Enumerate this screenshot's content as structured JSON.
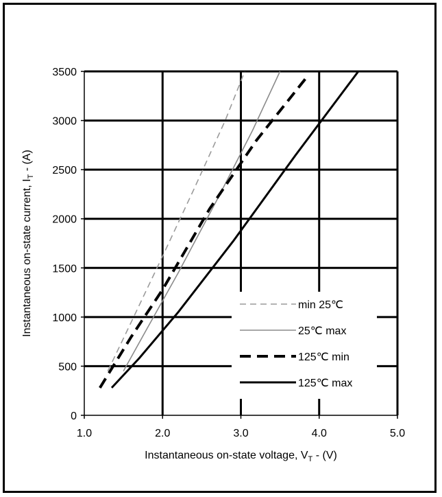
{
  "chart_data": {
    "type": "line",
    "xlabel": {
      "text": "Instantaneous on-state voltage, V",
      "sub": "T",
      "suffix": " - (V)"
    },
    "ylabel": {
      "text": "Instantaneous on-state current, I",
      "sub": "T",
      "suffix": " - (A)"
    },
    "xlim": [
      1.0,
      5.0
    ],
    "ylim": [
      0,
      3500
    ],
    "xticks": [
      1.0,
      2.0,
      3.0,
      4.0,
      5.0
    ],
    "xtick_labels": [
      "1.0",
      "2.0",
      "3.0",
      "4.0",
      "5.0"
    ],
    "yticks": [
      0,
      500,
      1000,
      1500,
      2000,
      2500,
      3000,
      3500
    ],
    "ytick_labels": [
      "0",
      "500",
      "1000",
      "1500",
      "2000",
      "2500",
      "3000",
      "3500"
    ],
    "grid": true,
    "legend_position": "bottom-right",
    "series": [
      {
        "name": "min 25℃",
        "style": "dashed-thin",
        "color": "#9a9a9a",
        "x": [
          1.3,
          1.6,
          2.0,
          2.4,
          2.8,
          3.05
        ],
        "y": [
          450,
          950,
          1620,
          2300,
          3000,
          3500
        ]
      },
      {
        "name": "25℃ max",
        "style": "solid-thin",
        "color": "#8a8a8a",
        "x": [
          1.5,
          1.8,
          2.2,
          2.7,
          3.15,
          3.5
        ],
        "y": [
          450,
          880,
          1450,
          2200,
          2900,
          3500
        ]
      },
      {
        "name": "125℃ min",
        "style": "dashed-thick",
        "color": "#000000",
        "x": [
          1.2,
          1.6,
          2.0,
          2.6,
          3.2,
          3.85
        ],
        "y": [
          280,
          800,
          1280,
          2100,
          2800,
          3450
        ]
      },
      {
        "name": "125℃ max",
        "style": "solid-thick",
        "color": "#000000",
        "x": [
          1.35,
          1.7,
          2.2,
          2.9,
          3.7,
          4.5
        ],
        "y": [
          280,
          580,
          1050,
          1770,
          2650,
          3500
        ]
      }
    ]
  }
}
